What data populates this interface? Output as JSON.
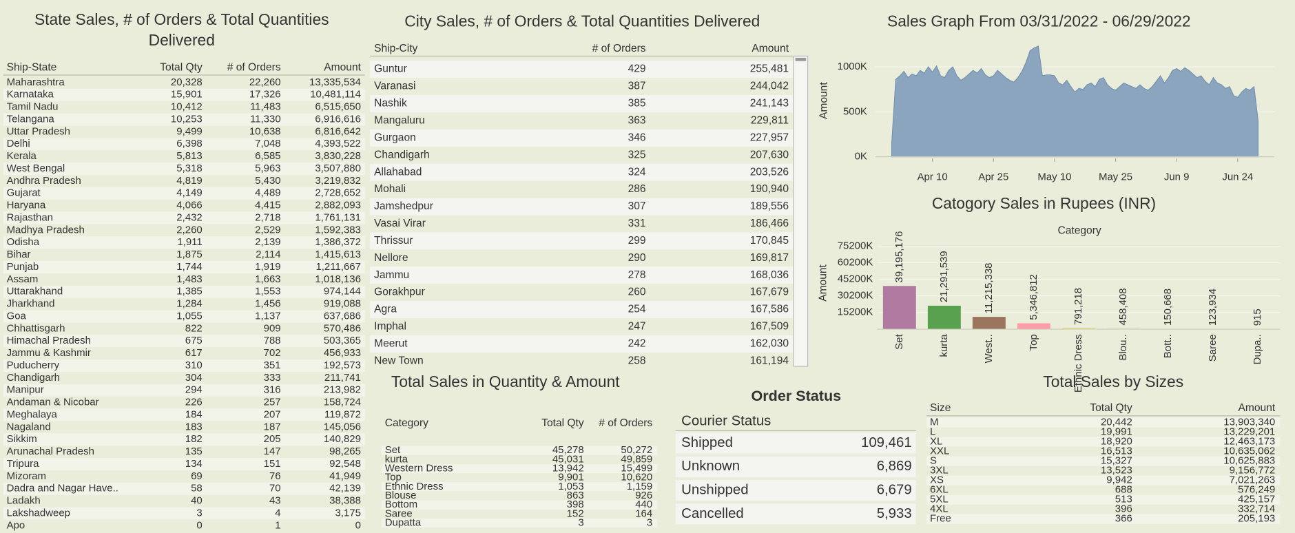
{
  "state_table": {
    "title": "State Sales, # of Orders & Total Quantities Delivered",
    "columns": [
      "Ship-State",
      "Total Qty",
      "# of Orders",
      "Amount"
    ],
    "rows": [
      [
        "Maharashtra",
        "20,328",
        "22,260",
        "13,335,534"
      ],
      [
        "Karnataka",
        "15,901",
        "17,326",
        "10,481,114"
      ],
      [
        "Tamil Nadu",
        "10,412",
        "11,483",
        "6,515,650"
      ],
      [
        "Telangana",
        "10,253",
        "11,330",
        "6,916,616"
      ],
      [
        "Uttar Pradesh",
        "9,499",
        "10,638",
        "6,816,642"
      ],
      [
        "Delhi",
        "6,398",
        "7,048",
        "4,393,522"
      ],
      [
        "Kerala",
        "5,813",
        "6,585",
        "3,830,228"
      ],
      [
        "West Bengal",
        "5,318",
        "5,963",
        "3,507,880"
      ],
      [
        "Andhra Pradesh",
        "4,819",
        "5,430",
        "3,219,832"
      ],
      [
        "Gujarat",
        "4,149",
        "4,489",
        "2,728,652"
      ],
      [
        "Haryana",
        "4,066",
        "4,415",
        "2,882,093"
      ],
      [
        "Rajasthan",
        "2,432",
        "2,718",
        "1,761,131"
      ],
      [
        "Madhya Pradesh",
        "2,260",
        "2,529",
        "1,592,383"
      ],
      [
        "Odisha",
        "1,911",
        "2,139",
        "1,386,372"
      ],
      [
        "Bihar",
        "1,875",
        "2,114",
        "1,415,613"
      ],
      [
        "Punjab",
        "1,744",
        "1,919",
        "1,211,667"
      ],
      [
        "Assam",
        "1,483",
        "1,663",
        "1,018,136"
      ],
      [
        "Uttarakhand",
        "1,385",
        "1,553",
        "974,144"
      ],
      [
        "Jharkhand",
        "1,284",
        "1,456",
        "919,088"
      ],
      [
        "Goa",
        "1,055",
        "1,137",
        "637,686"
      ],
      [
        "Chhattisgarh",
        "822",
        "909",
        "570,486"
      ],
      [
        "Himachal Pradesh",
        "675",
        "788",
        "503,365"
      ],
      [
        "Jammu & Kashmir",
        "617",
        "702",
        "456,933"
      ],
      [
        "Puducherry",
        "310",
        "351",
        "192,573"
      ],
      [
        "Chandigarh",
        "304",
        "333",
        "211,741"
      ],
      [
        "Manipur",
        "294",
        "316",
        "213,982"
      ],
      [
        "Andaman & Nicobar",
        "226",
        "257",
        "158,724"
      ],
      [
        "Meghalaya",
        "184",
        "207",
        "119,872"
      ],
      [
        "Nagaland",
        "183",
        "187",
        "145,056"
      ],
      [
        "Sikkim",
        "182",
        "205",
        "140,829"
      ],
      [
        "Arunachal Pradesh",
        "135",
        "147",
        "98,265"
      ],
      [
        "Tripura",
        "134",
        "151",
        "92,548"
      ],
      [
        "Mizoram",
        "69",
        "76",
        "41,949"
      ],
      [
        "Dadra and Nagar Have..",
        "58",
        "70",
        "42,139"
      ],
      [
        "Ladakh",
        "40",
        "43",
        "38,388"
      ],
      [
        "Lakshadweep",
        "3",
        "4",
        "3,175"
      ],
      [
        "Apo",
        "0",
        "1",
        "0"
      ]
    ]
  },
  "city_table": {
    "title": "City Sales, # of Orders & Total Quantities  Delivered",
    "columns": [
      "Ship-City",
      "# of Orders",
      "Amount"
    ],
    "rows": [
      [
        "Guntur",
        "429",
        "255,481"
      ],
      [
        "Varanasi",
        "387",
        "244,042"
      ],
      [
        "Nashik",
        "385",
        "241,143"
      ],
      [
        "Mangaluru",
        "363",
        "229,811"
      ],
      [
        "Gurgaon",
        "346",
        "227,957"
      ],
      [
        "Chandigarh",
        "325",
        "207,630"
      ],
      [
        "Allahabad",
        "324",
        "203,526"
      ],
      [
        "Mohali",
        "286",
        "190,940"
      ],
      [
        "Jamshedpur",
        "307",
        "189,556"
      ],
      [
        "Vasai Virar",
        "331",
        "186,466"
      ],
      [
        "Thrissur",
        "299",
        "170,845"
      ],
      [
        "Nellore",
        "290",
        "169,817"
      ],
      [
        "Jammu",
        "278",
        "168,036"
      ],
      [
        "Gorakhpur",
        "260",
        "167,679"
      ],
      [
        "Agra",
        "254",
        "167,586"
      ],
      [
        "Imphal",
        "247",
        "167,509"
      ],
      [
        "Meerut",
        "242",
        "162,030"
      ],
      [
        "New Town",
        "258",
        "161,194"
      ]
    ]
  },
  "chart_data": [
    {
      "type": "area",
      "title": "Sales Graph From 03/31/2022 - 06/29/2022",
      "y_label": "Amount",
      "color": "#8ba5bf",
      "x": [
        "2022-03-31",
        "2022-04-01",
        "2022-04-02",
        "2022-04-03",
        "2022-04-04",
        "2022-04-05",
        "2022-04-06",
        "2022-04-07",
        "2022-04-08",
        "2022-04-09",
        "2022-04-10",
        "2022-04-11",
        "2022-04-12",
        "2022-04-13",
        "2022-04-14",
        "2022-04-15",
        "2022-04-16",
        "2022-04-17",
        "2022-04-18",
        "2022-04-19",
        "2022-04-20",
        "2022-04-21",
        "2022-04-22",
        "2022-04-23",
        "2022-04-24",
        "2022-04-25",
        "2022-04-26",
        "2022-04-27",
        "2022-04-28",
        "2022-04-29",
        "2022-04-30",
        "2022-05-01",
        "2022-05-02",
        "2022-05-03",
        "2022-05-04",
        "2022-05-05",
        "2022-05-06",
        "2022-05-07",
        "2022-05-08",
        "2022-05-09",
        "2022-05-10",
        "2022-05-11",
        "2022-05-12",
        "2022-05-13",
        "2022-05-14",
        "2022-05-15",
        "2022-05-16",
        "2022-05-17",
        "2022-05-18",
        "2022-05-19",
        "2022-05-20",
        "2022-05-21",
        "2022-05-22",
        "2022-05-23",
        "2022-05-24",
        "2022-05-25",
        "2022-05-26",
        "2022-05-27",
        "2022-05-28",
        "2022-05-29",
        "2022-05-30",
        "2022-05-31",
        "2022-06-01",
        "2022-06-02",
        "2022-06-03",
        "2022-06-04",
        "2022-06-05",
        "2022-06-06",
        "2022-06-07",
        "2022-06-08",
        "2022-06-09",
        "2022-06-10",
        "2022-06-11",
        "2022-06-12",
        "2022-06-13",
        "2022-06-14",
        "2022-06-15",
        "2022-06-16",
        "2022-06-17",
        "2022-06-18",
        "2022-06-19",
        "2022-06-20",
        "2022-06-21",
        "2022-06-22",
        "2022-06-23",
        "2022-06-24",
        "2022-06-25",
        "2022-06-26",
        "2022-06-27",
        "2022-06-28",
        "2022-06-29"
      ],
      "values": [
        150000,
        860000,
        900000,
        950000,
        880000,
        920000,
        900000,
        960000,
        930000,
        1000000,
        940000,
        1010000,
        900000,
        880000,
        960000,
        1000000,
        900000,
        850000,
        880000,
        920000,
        960000,
        930000,
        980000,
        910000,
        880000,
        900000,
        960000,
        920000,
        880000,
        850000,
        830000,
        880000,
        950000,
        1050000,
        1180000,
        1210000,
        1230000,
        900000,
        910000,
        910000,
        900000,
        820000,
        800000,
        850000,
        780000,
        720000,
        760000,
        750000,
        800000,
        820000,
        780000,
        860000,
        880000,
        800000,
        760000,
        740000,
        780000,
        820000,
        800000,
        780000,
        760000,
        800000,
        760000,
        740000,
        780000,
        840000,
        900000,
        820000,
        880000,
        960000,
        980000,
        950000,
        990000,
        960000,
        920000,
        880000,
        900000,
        840000,
        800000,
        880000,
        820000,
        800000,
        760000,
        780000,
        680000,
        660000,
        720000,
        760000,
        740000,
        780000,
        400000
      ],
      "xlim": [
        "2022-03-27",
        "2022-07-03"
      ],
      "xticks": [
        {
          "value": "2022-04-10",
          "label": "Apr 10"
        },
        {
          "value": "2022-04-25",
          "label": "Apr 25"
        },
        {
          "value": "2022-05-10",
          "label": "May 10"
        },
        {
          "value": "2022-05-25",
          "label": "May 25"
        },
        {
          "value": "2022-06-09",
          "label": "Jun 9"
        },
        {
          "value": "2022-06-24",
          "label": "Jun 24"
        }
      ],
      "ylim": [
        0,
        1300000
      ],
      "yticks": [
        {
          "value": 0,
          "label": "0K"
        },
        {
          "value": 500000,
          "label": "500K"
        },
        {
          "value": 1000000,
          "label": "1000K"
        }
      ],
      "grid": true
    },
    {
      "type": "bar",
      "title": "Catogory Sales in Rupees (INR)",
      "x_label": "Category",
      "y_label": "Amount",
      "categories": [
        "Set",
        "kurta",
        "West..",
        "Top",
        "Ethnic Dress",
        "Blou..",
        "Bott..",
        "Saree",
        "Dupa.."
      ],
      "values": [
        39195176,
        21291539,
        11215338,
        5346812,
        791218,
        458408,
        150668,
        123934,
        915
      ],
      "value_labels": [
        "39,195,176",
        "21,291,539",
        "11,215,338",
        "5,346,812",
        "791,218",
        "458,408",
        "150,668",
        "123,934",
        "915"
      ],
      "colors": [
        "#b07aa1",
        "#59a14f",
        "#9c755f",
        "#ff9da7",
        "#edc948",
        "#bab0ac",
        "#76b7b2",
        "#e15759",
        "#f28e2b"
      ],
      "ylim": [
        0,
        80000000
      ],
      "yticks": [
        {
          "value": 15200000,
          "label": "15200K"
        },
        {
          "value": 30200000,
          "label": "30200K"
        },
        {
          "value": 45200000,
          "label": "45200K"
        },
        {
          "value": 60200000,
          "label": "60200K"
        },
        {
          "value": 75200000,
          "label": "75200K"
        }
      ],
      "grid": true
    }
  ],
  "quantity_table": {
    "title": "Total Sales in Quantity & Amount",
    "columns": [
      "Category",
      "Total Qty",
      "# of Orders"
    ],
    "rows": [
      [
        "Set",
        "45,278",
        "50,272"
      ],
      [
        "kurta",
        "45,031",
        "49,859"
      ],
      [
        "Western Dress",
        "13,942",
        "15,499"
      ],
      [
        "Top",
        "9,901",
        "10,620"
      ],
      [
        "Ethnic Dress",
        "1,053",
        "1,159"
      ],
      [
        "Blouse",
        "863",
        "926"
      ],
      [
        "Bottom",
        "398",
        "440"
      ],
      [
        "Saree",
        "152",
        "164"
      ],
      [
        "Dupatta",
        "3",
        "3"
      ]
    ]
  },
  "order_status": {
    "title": "Order Status",
    "columns": [
      "Courier Status"
    ],
    "rows": [
      [
        "Shipped",
        "109,461"
      ],
      [
        "Unknown",
        "6,869"
      ],
      [
        "Unshipped",
        "6,679"
      ],
      [
        "Cancelled",
        "5,933"
      ]
    ]
  },
  "size_table": {
    "title": "Total Sales by Sizes",
    "columns": [
      "Size",
      "Total Qty",
      "Amount"
    ],
    "rows": [
      [
        "M",
        "20,442",
        "13,903,340"
      ],
      [
        "L",
        "19,991",
        "13,229,201"
      ],
      [
        "XL",
        "18,920",
        "12,463,173"
      ],
      [
        "XXL",
        "16,513",
        "10,635,062"
      ],
      [
        "S",
        "15,327",
        "10,625,883"
      ],
      [
        "3XL",
        "13,523",
        "9,156,772"
      ],
      [
        "XS",
        "9,942",
        "7,021,263"
      ],
      [
        "6XL",
        "688",
        "576,249"
      ],
      [
        "5XL",
        "513",
        "425,157"
      ],
      [
        "4XL",
        "396",
        "332,714"
      ],
      [
        "Free",
        "366",
        "205,193"
      ]
    ]
  }
}
